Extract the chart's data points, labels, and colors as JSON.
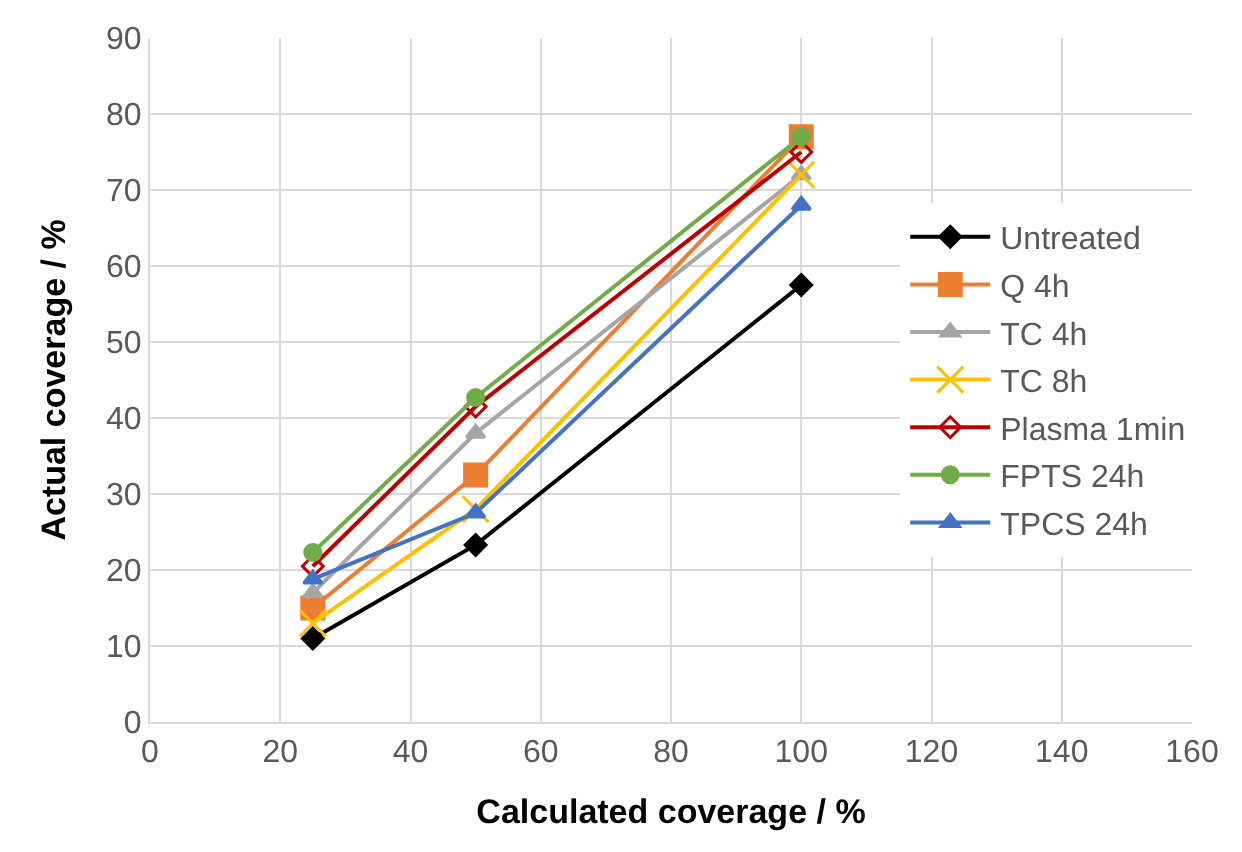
{
  "chart_data": {
    "type": "line",
    "xlabel": "Calculated coverage / %",
    "ylabel": "Actual coverage / %",
    "x": [
      25,
      50,
      100
    ],
    "xlim": [
      0,
      160
    ],
    "xticks": [
      0,
      20,
      40,
      60,
      80,
      100,
      120,
      140,
      160
    ],
    "ylim": [
      0,
      90
    ],
    "yticks": [
      0,
      10,
      20,
      30,
      40,
      50,
      60,
      70,
      80,
      90
    ],
    "grid": true,
    "legend": "right",
    "series": [
      {
        "name": "Untreated",
        "color": "#000000",
        "marker": "diamond",
        "values": [
          11,
          23.3,
          57.5
        ]
      },
      {
        "name": "Q 4h",
        "color": "#ed7d31",
        "marker": "square",
        "values": [
          15,
          32.5,
          77
        ]
      },
      {
        "name": "TC 4h",
        "color": "#a5a5a5",
        "marker": "triangle",
        "values": [
          17,
          38,
          72
        ]
      },
      {
        "name": "TC 8h",
        "color": "#ffc000",
        "marker": "cross",
        "values": [
          13,
          28,
          72
        ]
      },
      {
        "name": "Plasma 1min",
        "color": "#c00000",
        "marker": "diamond-open",
        "values": [
          20.5,
          41.5,
          75
        ]
      },
      {
        "name": "FPTS 24h",
        "color": "#70ad47",
        "marker": "circle",
        "values": [
          22.3,
          42.7,
          77
        ]
      },
      {
        "name": "TPCS 24h",
        "color": "#4472c4",
        "marker": "triangle",
        "values": [
          18.8,
          27.5,
          68
        ]
      }
    ]
  }
}
